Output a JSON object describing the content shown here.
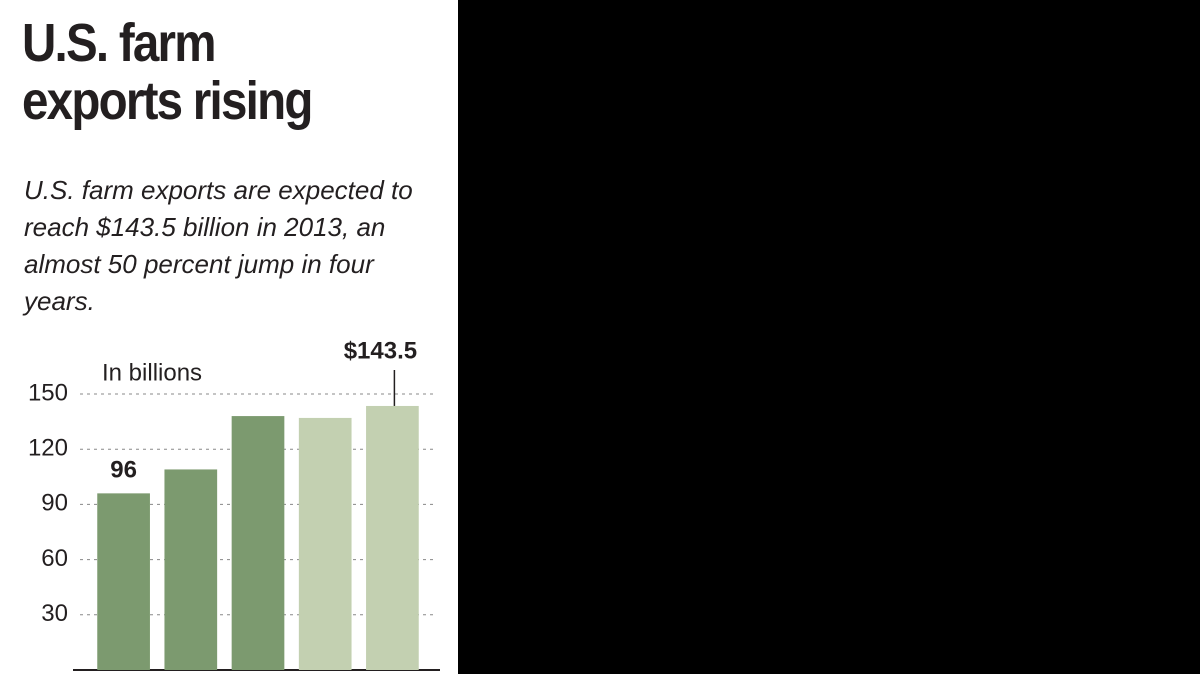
{
  "chart_data": {
    "type": "bar",
    "title": "U.S. farm exports rising",
    "subtitle": "U.S. farm exports are expected to reach $143.5 billion in 2013, an almost 50 percent jump in four years.",
    "unit_label": "In billions",
    "categories": [
      null,
      null,
      null,
      null,
      null
    ],
    "values": [
      96,
      109,
      138,
      137,
      143.5
    ],
    "value_labels": [
      "96",
      null,
      null,
      null,
      "$143.5"
    ],
    "colors": [
      "#7c9a6f",
      "#7c9a6f",
      "#7c9a6f",
      "#c3d0b1",
      "#c3d0b1"
    ],
    "ylim": [
      0,
      150
    ],
    "yticks": [
      30,
      60,
      90,
      120,
      150
    ],
    "grid": true
  }
}
